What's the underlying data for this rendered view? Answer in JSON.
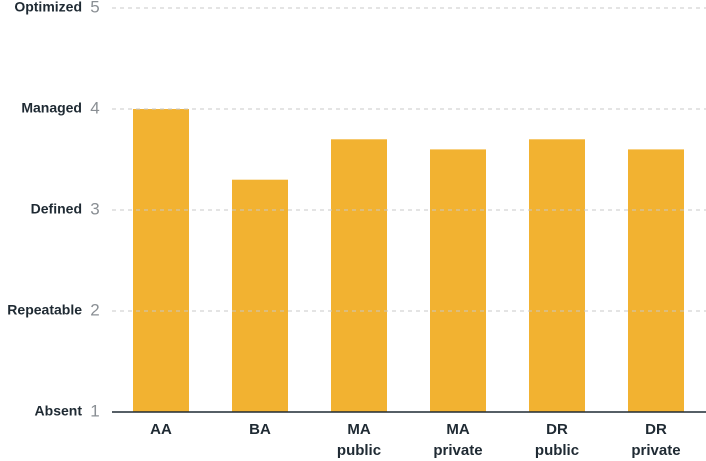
{
  "chart_data": {
    "type": "bar",
    "categories": [
      "AA",
      "BA",
      "MA public",
      "MA private",
      "DR public",
      "DR private"
    ],
    "values": [
      4.0,
      3.3,
      3.7,
      3.6,
      3.7,
      3.6
    ],
    "color": "#f2b231",
    "ylim": [
      1,
      5
    ],
    "yticks": [
      1,
      2,
      3,
      4,
      5
    ],
    "ytick_names": [
      "Absent",
      "Repeatable",
      "Defined",
      "Managed",
      "Optimized"
    ],
    "grid": true
  }
}
